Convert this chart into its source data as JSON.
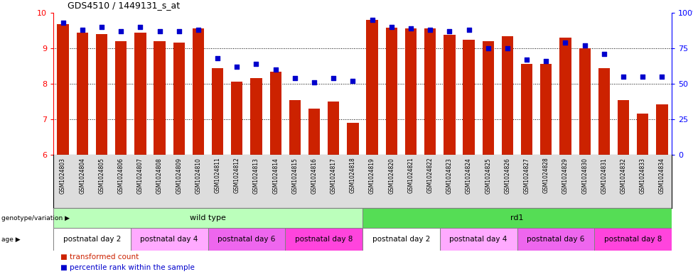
{
  "title": "GDS4510 / 1449131_s_at",
  "samples": [
    "GSM1024803",
    "GSM1024804",
    "GSM1024805",
    "GSM1024806",
    "GSM1024807",
    "GSM1024808",
    "GSM1024809",
    "GSM1024810",
    "GSM1024811",
    "GSM1024812",
    "GSM1024813",
    "GSM1024814",
    "GSM1024815",
    "GSM1024816",
    "GSM1024817",
    "GSM1024818",
    "GSM1024819",
    "GSM1024820",
    "GSM1024821",
    "GSM1024822",
    "GSM1024823",
    "GSM1024824",
    "GSM1024825",
    "GSM1024826",
    "GSM1024827",
    "GSM1024828",
    "GSM1024829",
    "GSM1024830",
    "GSM1024831",
    "GSM1024832",
    "GSM1024833",
    "GSM1024834"
  ],
  "bar_values": [
    9.68,
    9.45,
    9.4,
    9.2,
    9.45,
    9.2,
    9.15,
    9.55,
    8.45,
    8.05,
    8.15,
    8.35,
    7.55,
    7.3,
    7.5,
    6.9,
    9.8,
    9.58,
    9.55,
    9.55,
    9.38,
    9.25,
    9.2,
    9.35,
    8.55,
    8.55,
    9.3,
    9.0,
    8.45,
    7.55,
    7.15,
    7.42
  ],
  "dot_values": [
    93,
    88,
    90,
    87,
    90,
    87,
    87,
    88,
    68,
    62,
    64,
    60,
    54,
    51,
    54,
    52,
    95,
    90,
    89,
    88,
    87,
    88,
    75,
    75,
    67,
    66,
    79,
    77,
    71,
    55,
    55,
    55
  ],
  "ylim_left": [
    6,
    10
  ],
  "ylim_right": [
    0,
    100
  ],
  "yticks_left": [
    6,
    7,
    8,
    9,
    10
  ],
  "yticks_right": [
    0,
    25,
    50,
    75,
    100
  ],
  "bar_color": "#CC2200",
  "dot_color": "#0000CC",
  "bar_width": 0.6,
  "groups": {
    "genotype": [
      {
        "label": "wild type",
        "start": 0,
        "end": 16,
        "color": "#BBFFBB"
      },
      {
        "label": "rd1",
        "start": 16,
        "end": 32,
        "color": "#55DD55"
      }
    ],
    "age": [
      {
        "label": "postnatal day 2",
        "start": 0,
        "end": 4,
        "color": "#FFFFFF"
      },
      {
        "label": "postnatal day 4",
        "start": 4,
        "end": 8,
        "color": "#FFAAFF"
      },
      {
        "label": "postnatal day 6",
        "start": 8,
        "end": 12,
        "color": "#EE66EE"
      },
      {
        "label": "postnatal day 8",
        "start": 12,
        "end": 16,
        "color": "#FF44DD"
      },
      {
        "label": "postnatal day 2",
        "start": 16,
        "end": 20,
        "color": "#FFFFFF"
      },
      {
        "label": "postnatal day 4",
        "start": 20,
        "end": 24,
        "color": "#FFAAFF"
      },
      {
        "label": "postnatal day 6",
        "start": 24,
        "end": 28,
        "color": "#EE66EE"
      },
      {
        "label": "postnatal day 8",
        "start": 28,
        "end": 32,
        "color": "#FF44DD"
      }
    ]
  },
  "xlabel_bg": "#DDDDDD",
  "legend_items": [
    {
      "label": "transformed count",
      "color": "#CC2200"
    },
    {
      "label": "percentile rank within the sample",
      "color": "#0000CC"
    }
  ]
}
